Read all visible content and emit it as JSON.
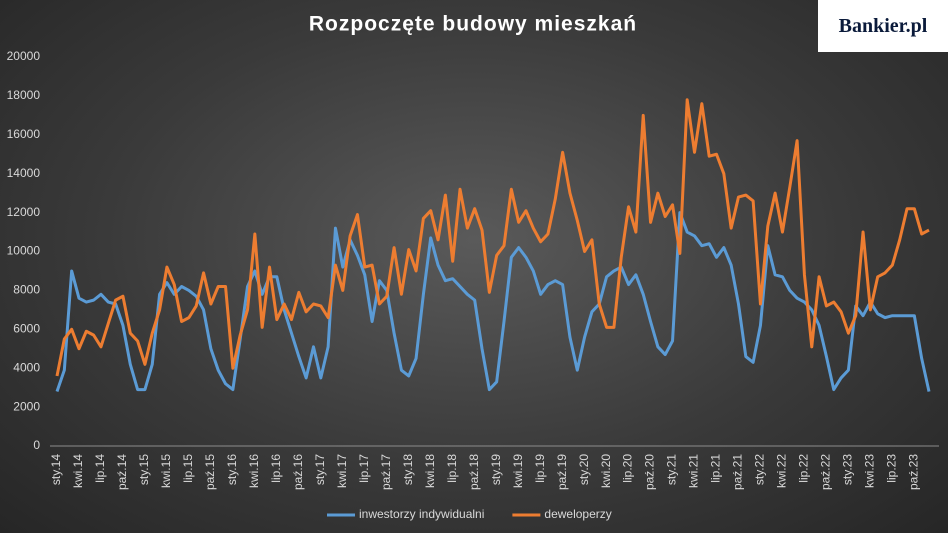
{
  "logo": "Bankier.pl",
  "chart_data": {
    "type": "line",
    "title": "Rozpoczęte budowy mieszkań",
    "categories": [
      "sty.14",
      null,
      null,
      "kwi.14",
      null,
      null,
      "lip.14",
      null,
      null,
      "paź.14",
      null,
      null,
      "sty.15",
      null,
      null,
      "kwi.15",
      null,
      null,
      "lip.15",
      null,
      null,
      "paź.15",
      null,
      null,
      "sty.16",
      null,
      null,
      "kwi.16",
      null,
      null,
      "lip.16",
      null,
      null,
      "paź.16",
      null,
      null,
      "sty.17",
      null,
      null,
      "kwi.17",
      null,
      null,
      "lip.17",
      null,
      null,
      "paź.17",
      null,
      null,
      "sty.18",
      null,
      null,
      "kwi.18",
      null,
      null,
      "lip.18",
      null,
      null,
      "paź.18",
      null,
      null,
      "sty.19",
      null,
      null,
      "kwi.19",
      null,
      null,
      "lip.19",
      null,
      null,
      "paź.19",
      null,
      null,
      "sty.20",
      null,
      null,
      "kwi.20",
      null,
      null,
      "lip.20",
      null,
      null,
      "paź.20",
      null,
      null,
      "sty.21",
      null,
      null,
      "kwi.21",
      null,
      null,
      "lip.21",
      null,
      null,
      "paź.21",
      null,
      null,
      "sty.22",
      null,
      null,
      "kwi.22",
      null,
      null,
      "lip.22",
      null,
      null,
      "paź.22",
      null,
      null,
      "sty.23",
      null,
      null,
      "kwi.23",
      null,
      null,
      "lip.23",
      null,
      null,
      "paź.23",
      null,
      null
    ],
    "series": [
      {
        "name": "inwestorzy indywidualni",
        "color": "#5b9bd5",
        "values": [
          2800,
          3900,
          9000,
          7600,
          7400,
          7500,
          7800,
          7400,
          7300,
          6200,
          4200,
          2900,
          2900,
          4200,
          7800,
          8400,
          7800,
          8200,
          8000,
          7700,
          7000,
          5000,
          3900,
          3200,
          2900,
          5500,
          8200,
          9000,
          7800,
          8700,
          8700,
          7000,
          5800,
          4600,
          3500,
          5100,
          3500,
          5100,
          11200,
          9200,
          10600,
          9800,
          8800,
          6400,
          8500,
          8000,
          5800,
          3900,
          3600,
          4500,
          7800,
          10700,
          9300,
          8500,
          8600,
          8200,
          7800,
          7500,
          5000,
          2900,
          3300,
          6400,
          9700,
          10200,
          9700,
          9000,
          7800,
          8300,
          8500,
          8300,
          5600,
          3900,
          5600,
          6900,
          7300,
          8700,
          9000,
          9200,
          8300,
          8800,
          7800,
          6400,
          5100,
          4700,
          5400,
          12000,
          11000,
          10800,
          10300,
          10400,
          9700,
          10200,
          9300,
          7300,
          4600,
          4300,
          6200,
          10300,
          8800,
          8700,
          8000,
          7600,
          7400,
          7000,
          6200,
          4600,
          2900,
          3500,
          3900,
          7200,
          6700,
          7400,
          6800,
          6600,
          6700,
          6700,
          6700,
          6700,
          4500,
          2800
        ]
      },
      {
        "name": "deweloperzy",
        "color": "#ed7d31",
        "values": [
          3600,
          5500,
          6000,
          5000,
          5900,
          5700,
          5100,
          6300,
          7500,
          7700,
          5800,
          5400,
          4200,
          5800,
          7000,
          9200,
          8300,
          6400,
          6600,
          7200,
          8900,
          7300,
          8200,
          8200,
          4000,
          5700,
          7000,
          10900,
          6100,
          9200,
          6500,
          7300,
          6500,
          7900,
          6900,
          7300,
          7200,
          6600,
          9300,
          8000,
          10800,
          11900,
          9200,
          9300,
          7300,
          7700,
          10200,
          7800,
          10100,
          9000,
          11700,
          12100,
          10600,
          12900,
          9500,
          13200,
          11200,
          12200,
          11100,
          7900,
          9800,
          10300,
          13200,
          11500,
          12100,
          11200,
          10500,
          10900,
          12700,
          15100,
          13000,
          11600,
          10000,
          10600,
          7300,
          6100,
          6100,
          9700,
          12300,
          11000,
          17000,
          11500,
          13000,
          11800,
          12400,
          9900,
          17800,
          15100,
          17600,
          14900,
          15000,
          14000,
          11200,
          12800,
          12900,
          12600,
          7300,
          11300,
          13000,
          11000,
          13300,
          15700,
          8800,
          5100,
          8700,
          7200,
          7400,
          6900,
          5800,
          6700,
          11000,
          7000,
          8700,
          8900,
          9300,
          10600,
          12200,
          12200,
          10900,
          11100
        ]
      }
    ],
    "ylim": [
      0,
      20000
    ],
    "yticks": [
      0,
      2000,
      4000,
      6000,
      8000,
      10000,
      12000,
      14000,
      16000,
      18000,
      20000
    ],
    "grid": false,
    "legend": "bottom"
  }
}
